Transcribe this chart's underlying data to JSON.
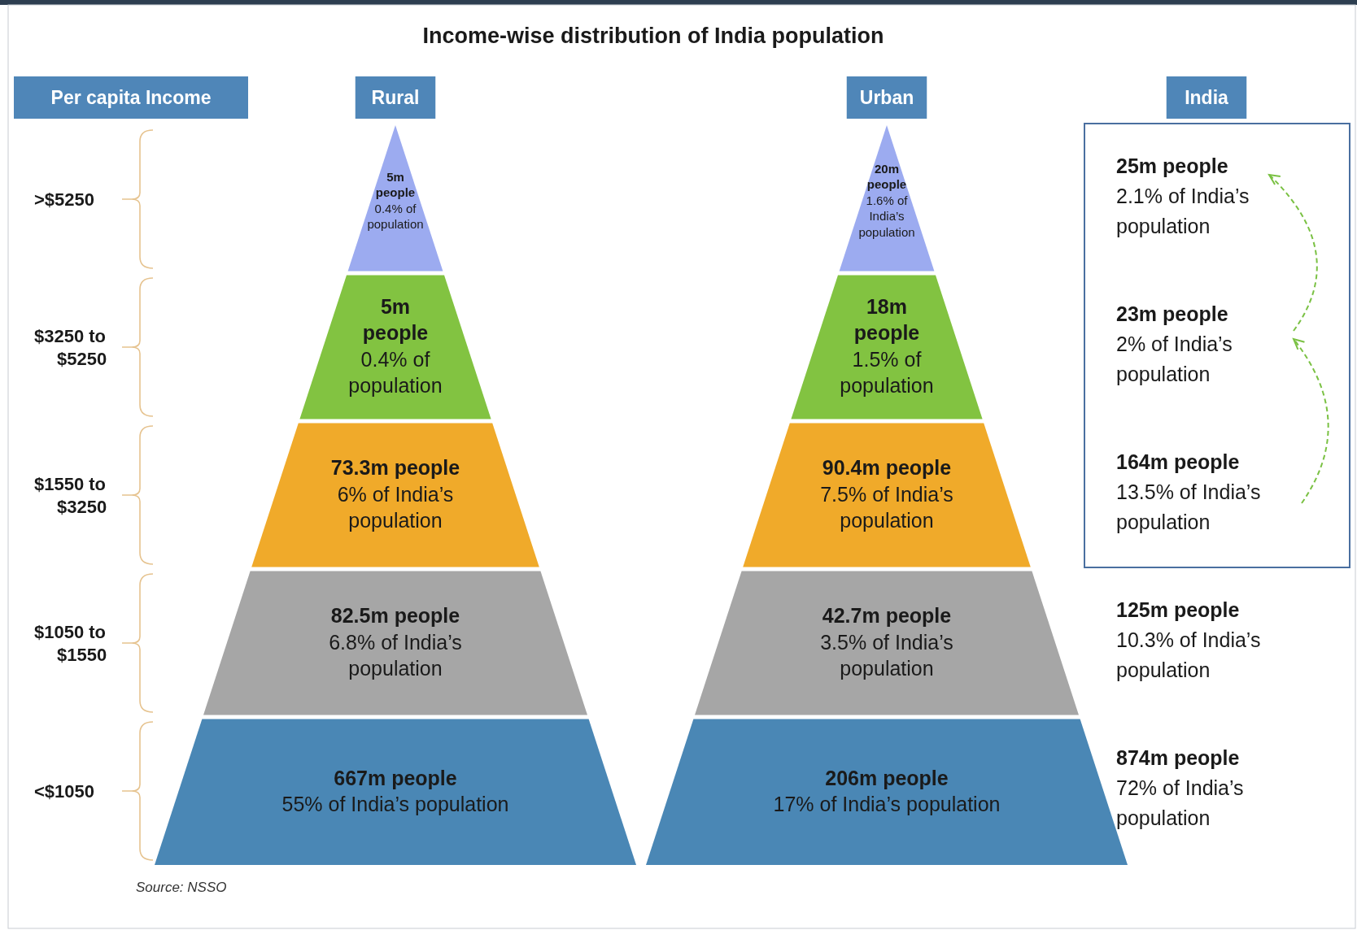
{
  "chart_data": {
    "type": "other",
    "title": "Income-wise distribution of India population",
    "ylabel": "Per capita Income",
    "categories": [
      ">$5250",
      "$3250 to $5250",
      "$1550 to $3250",
      "$1050 to $1550",
      "<$1050"
    ],
    "series": [
      {
        "name": "Rural",
        "colors": [
          "#9cabf0",
          "#82c341",
          "#f0aa2a",
          "#a6a6a6",
          "#4a87b5"
        ],
        "values": [
          5,
          5,
          73.3,
          82.5,
          667
        ],
        "value_labels": [
          "5m people",
          "5m people",
          "73.3m people",
          "82.5m people",
          "667m people"
        ]
      },
      {
        "values": [
          0.4,
          0.4,
          6,
          6.8,
          55
        ],
        "value_labels": [
          "0.4% of population",
          "0.4% of population",
          "6% of India’s population",
          "6.8% of India’s population",
          "55% of India’s population"
        ]
      },
      {
        "name": "Urban",
        "colors": [
          "#9cabf0",
          "#82c341",
          "#f0aa2a",
          "#a6a6a6",
          "#4a87b5"
        ],
        "values": [
          20,
          18,
          90.4,
          42.7,
          206
        ],
        "value_labels": [
          "20m people",
          "18m people",
          "90.4m people",
          "42.7m people",
          "206m people"
        ]
      },
      {
        "values": [
          1.6,
          1.5,
          7.5,
          3.5,
          17
        ],
        "value_labels": [
          "1.6% of India’s population",
          "1.5% of population",
          "7.5% of India’s population",
          "3.5% of India’s population",
          "17% of India’s population"
        ]
      },
      {
        "name": "India",
        "type": "other",
        "values": [
          25,
          23,
          164,
          125,
          874
        ],
        "value_labels": [
          "25m people",
          "23m people",
          "164m people",
          "125m people",
          "874m people"
        ]
      },
      {
        "type": "other",
        "values": [
          2.1,
          2,
          13.5,
          10.3,
          72
        ],
        "value_labels": [
          "2.1% of India’s population",
          "2% of India’s population",
          "13.5% of India’s population",
          "10.3% of India’s population",
          "72% of India’s population"
        ]
      }
    ],
    "annotations": [
      "Source: NSSO"
    ]
  }
}
